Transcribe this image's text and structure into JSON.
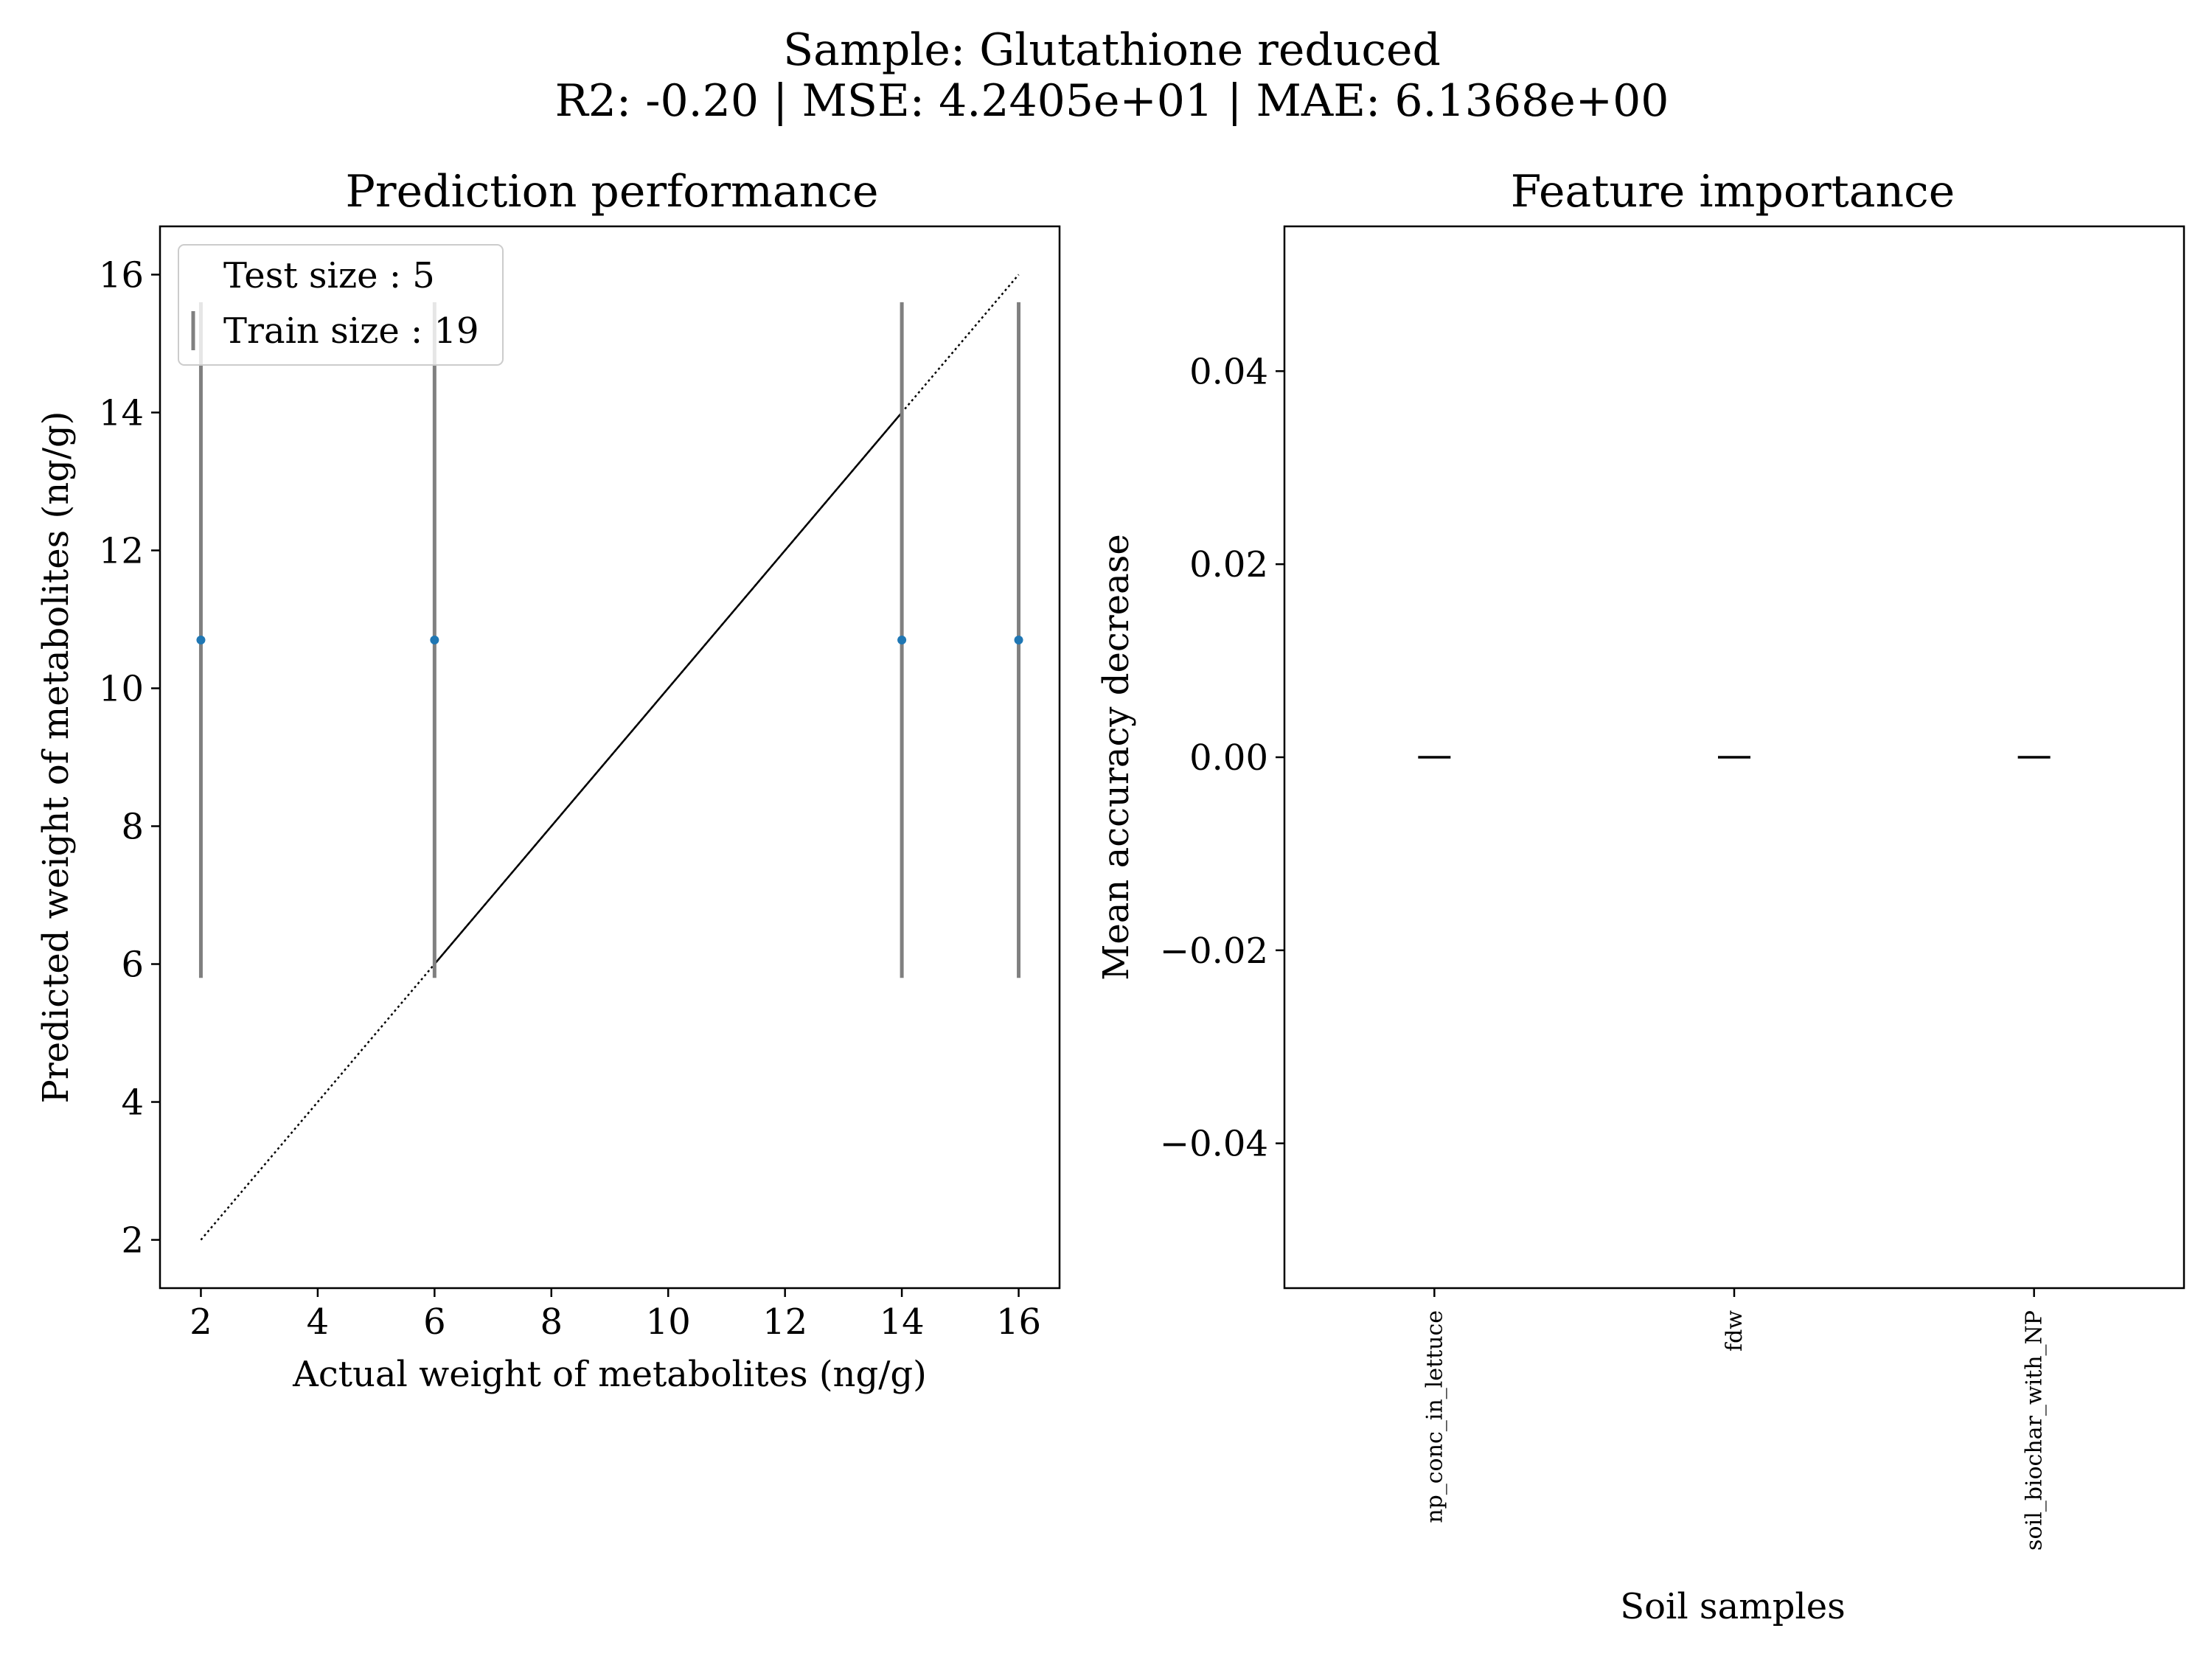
{
  "figure": {
    "suptitle_line1": "Sample: Glutathione reduced",
    "suptitle_line2": "R2: -0.20 | MSE: 4.2405e+01 | MAE: 6.1368e+00"
  },
  "colors": {
    "point": "#1f77b4",
    "errorbar": "#808080",
    "line": "#000000",
    "axes": "#000000",
    "background": "#ffffff"
  },
  "chart_data": [
    {
      "id": "prediction",
      "type": "scatter",
      "title": "Prediction performance",
      "xlabel": "Actual weight of metabolites (ng/g)",
      "ylabel": "Predicted weight of metabolites (ng/g)",
      "xlim": [
        1.3,
        16.7
      ],
      "ylim": [
        1.3,
        16.7
      ],
      "xticks": [
        2,
        4,
        6,
        8,
        10,
        12,
        14,
        16
      ],
      "yticks": [
        2,
        4,
        6,
        8,
        10,
        12,
        14,
        16
      ],
      "grid": false,
      "legend": {
        "placement": "upper left",
        "entries": [
          "Test size : 5",
          "Train size : 19"
        ]
      },
      "points": [
        {
          "x": 2,
          "y": 10.7,
          "ylow": 5.8,
          "yhigh": 15.6
        },
        {
          "x": 6,
          "y": 10.7,
          "ylow": 5.8,
          "yhigh": 15.6
        },
        {
          "x": 14,
          "y": 10.7,
          "ylow": 5.8,
          "yhigh": 15.6
        },
        {
          "x": 16,
          "y": 10.7,
          "ylow": 5.8,
          "yhigh": 15.6
        }
      ],
      "identity_line": {
        "from": 2,
        "to": 16
      },
      "solid_segment": {
        "from": 6,
        "to": 14
      }
    },
    {
      "id": "importance",
      "type": "box",
      "title": "Feature importance",
      "xlabel": "Soil samples",
      "ylabel": "Mean accuracy decrease",
      "ylim": [
        -0.055,
        0.055
      ],
      "yticks": [
        0.04,
        0.02,
        0.0,
        -0.02,
        -0.04
      ],
      "ytick_labels": [
        "0.04",
        "0.02",
        "0.00",
        "−0.02",
        "−0.04"
      ],
      "grid": false,
      "categories": [
        "np_conc_in_lettuce",
        "fdw",
        "soil_biochar_with_NP"
      ],
      "values": [
        0.0,
        0.0,
        0.0
      ]
    }
  ]
}
